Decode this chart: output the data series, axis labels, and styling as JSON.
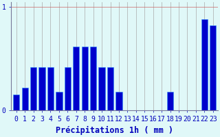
{
  "values": [
    0.15,
    0.22,
    0.42,
    0.42,
    0.42,
    0.18,
    0.42,
    0.62,
    0.62,
    0.62,
    0.42,
    0.42,
    0.18,
    0,
    0,
    0,
    0,
    0,
    0.18,
    0,
    0,
    0,
    0.88,
    0.82
  ],
  "xlabel": "Précipitations 1h ( mm )",
  "ylim": [
    0,
    1.05
  ],
  "xlim": [
    -0.6,
    23.6
  ],
  "bar_color": "#0000cc",
  "bar_edge_color": "#3399ff",
  "background_color": "#e0f8f8",
  "plot_bg_color": "#e0f8f8",
  "vgrid_color": "#aaaaaa",
  "hgrid_color": "#cc6666",
  "axis_color": "#777799",
  "text_color": "#0000bb",
  "yticks": [
    0,
    1
  ],
  "xticks": [
    0,
    1,
    2,
    3,
    4,
    5,
    6,
    7,
    8,
    9,
    10,
    11,
    12,
    13,
    14,
    15,
    16,
    17,
    18,
    19,
    20,
    21,
    22,
    23
  ],
  "xlabel_fontsize": 8.5,
  "tick_fontsize": 7,
  "bar_width": 0.75
}
